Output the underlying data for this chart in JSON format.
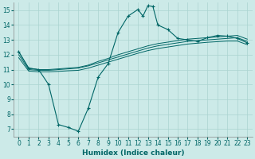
{
  "xlabel": "Humidex (Indice chaleur)",
  "xlim": [
    -0.5,
    23.5
  ],
  "ylim": [
    6.5,
    15.5
  ],
  "xticks": [
    0,
    1,
    2,
    3,
    4,
    5,
    6,
    7,
    8,
    9,
    10,
    11,
    12,
    13,
    14,
    15,
    16,
    17,
    18,
    19,
    20,
    21,
    22,
    23
  ],
  "yticks": [
    7,
    8,
    9,
    10,
    11,
    12,
    13,
    14,
    15
  ],
  "bg_color": "#cceae8",
  "grid_color": "#aad4d0",
  "line_color": "#006666",
  "line1_x": [
    0,
    1,
    2,
    3,
    4,
    5,
    6,
    7,
    8,
    9,
    10,
    11,
    12,
    12.5,
    13,
    13.5,
    14,
    15,
    16,
    17,
    18,
    19,
    20,
    21,
    22,
    23
  ],
  "line1_y": [
    12.2,
    11.1,
    11.0,
    10.0,
    7.3,
    7.1,
    6.85,
    8.4,
    10.5,
    11.4,
    13.5,
    14.6,
    15.05,
    14.6,
    15.3,
    15.25,
    14.0,
    13.7,
    13.1,
    13.0,
    12.9,
    13.15,
    13.3,
    13.25,
    13.1,
    12.8
  ],
  "line2_x": [
    0,
    1,
    2,
    3,
    4,
    5,
    6,
    7,
    8,
    9,
    10,
    11,
    12,
    13,
    14,
    15,
    16,
    17,
    18,
    19,
    20,
    21,
    22,
    23
  ],
  "line2_y": [
    12.2,
    11.1,
    11.0,
    11.0,
    11.05,
    11.1,
    11.15,
    11.3,
    11.55,
    11.75,
    12.0,
    12.2,
    12.4,
    12.6,
    12.75,
    12.85,
    12.95,
    13.05,
    13.1,
    13.15,
    13.2,
    13.25,
    13.3,
    13.05
  ],
  "line3_x": [
    0,
    1,
    2,
    3,
    4,
    5,
    6,
    7,
    8,
    9,
    10,
    11,
    12,
    13,
    14,
    15,
    16,
    17,
    18,
    19,
    20,
    21,
    22,
    23
  ],
  "line3_y": [
    12.0,
    11.0,
    10.95,
    10.95,
    11.0,
    11.05,
    11.1,
    11.25,
    11.45,
    11.65,
    11.85,
    12.05,
    12.25,
    12.45,
    12.6,
    12.7,
    12.8,
    12.9,
    12.95,
    13.0,
    13.05,
    13.1,
    13.15,
    12.9
  ],
  "line4_x": [
    0,
    1,
    2,
    3,
    4,
    5,
    6,
    7,
    8,
    9,
    10,
    11,
    12,
    13,
    14,
    15,
    16,
    17,
    18,
    19,
    20,
    21,
    22,
    23
  ],
  "line4_y": [
    11.8,
    10.9,
    10.85,
    10.85,
    10.88,
    10.92,
    10.95,
    11.1,
    11.3,
    11.5,
    11.7,
    11.9,
    12.1,
    12.28,
    12.42,
    12.52,
    12.62,
    12.72,
    12.78,
    12.84,
    12.88,
    12.92,
    12.92,
    12.68
  ]
}
